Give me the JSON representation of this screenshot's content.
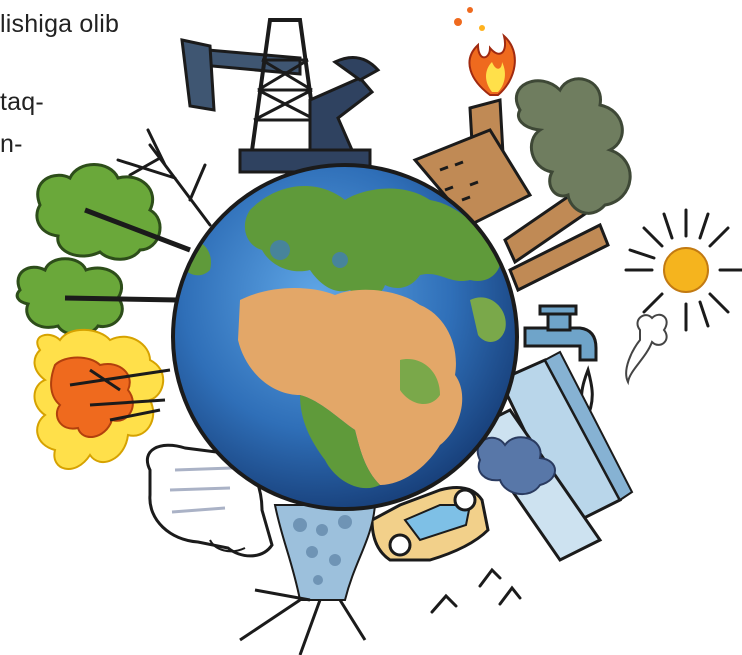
{
  "text_fragments": {
    "line1": "lishiga   olib",
    "line2": "taq-",
    "line3": "n-"
  },
  "colors": {
    "ocean": "#2f6fb8",
    "land_green": "#5f9a3a",
    "land_desert": "#e3a768",
    "tree_green": "#6aa83a",
    "fire_orange": "#ef6a1e",
    "fire_yellow": "#ffe04a",
    "factory_brown": "#c08a55",
    "smoke_gray": "#6f7d5f",
    "sun": "#f5b41e",
    "tap_blue": "#6fa4c9",
    "car_yellow": "#f2d08a",
    "building_blue": "#b9d6ea",
    "outline": "#1b1b1b"
  },
  "icons": [
    "oil-pump-icon",
    "flame-icon",
    "factory-icon",
    "smoke-icon",
    "sun-icon",
    "tap-icon",
    "buildings-icon",
    "car-icon",
    "hand-icon",
    "dead-tree-icon",
    "trees-icon",
    "burning-tree-icon",
    "birds-icon",
    "earth-globe-icon"
  ]
}
